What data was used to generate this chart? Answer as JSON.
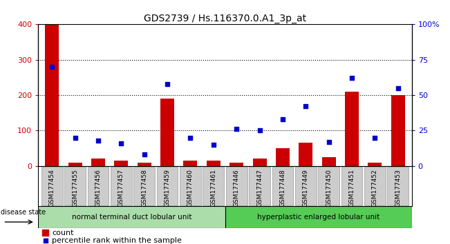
{
  "title": "GDS2739 / Hs.116370.0.A1_3p_at",
  "samples": [
    "GSM177454",
    "GSM177455",
    "GSM177456",
    "GSM177457",
    "GSM177458",
    "GSM177459",
    "GSM177460",
    "GSM177461",
    "GSM177446",
    "GSM177447",
    "GSM177448",
    "GSM177449",
    "GSM177450",
    "GSM177451",
    "GSM177452",
    "GSM177453"
  ],
  "counts": [
    400,
    10,
    20,
    15,
    10,
    190,
    15,
    15,
    10,
    20,
    50,
    65,
    25,
    210,
    10,
    200
  ],
  "percentiles": [
    70,
    20,
    18,
    16,
    8,
    58,
    20,
    15,
    26,
    25,
    33,
    42,
    17,
    62,
    20,
    55
  ],
  "group1_label": "normal terminal duct lobular unit",
  "group2_label": "hyperplastic enlarged lobular unit",
  "group1_count": 8,
  "group2_count": 8,
  "legend_count_label": "count",
  "legend_pct_label": "percentile rank within the sample",
  "disease_state_label": "disease state",
  "bar_color": "#cc0000",
  "dot_color": "#0000cc",
  "group1_color": "#aaddaa",
  "group2_color": "#55cc55",
  "label_box_color": "#cccccc",
  "label_box_edge": "#999999",
  "ylim_left": [
    0,
    400
  ],
  "ylim_right": [
    0,
    100
  ],
  "yticks_left": [
    0,
    100,
    200,
    300,
    400
  ],
  "yticks_right": [
    0,
    25,
    50,
    75,
    100
  ],
  "ytick_right_labels": [
    "0",
    "25",
    "50",
    "75",
    "100%"
  ],
  "background_color": "#ffffff"
}
